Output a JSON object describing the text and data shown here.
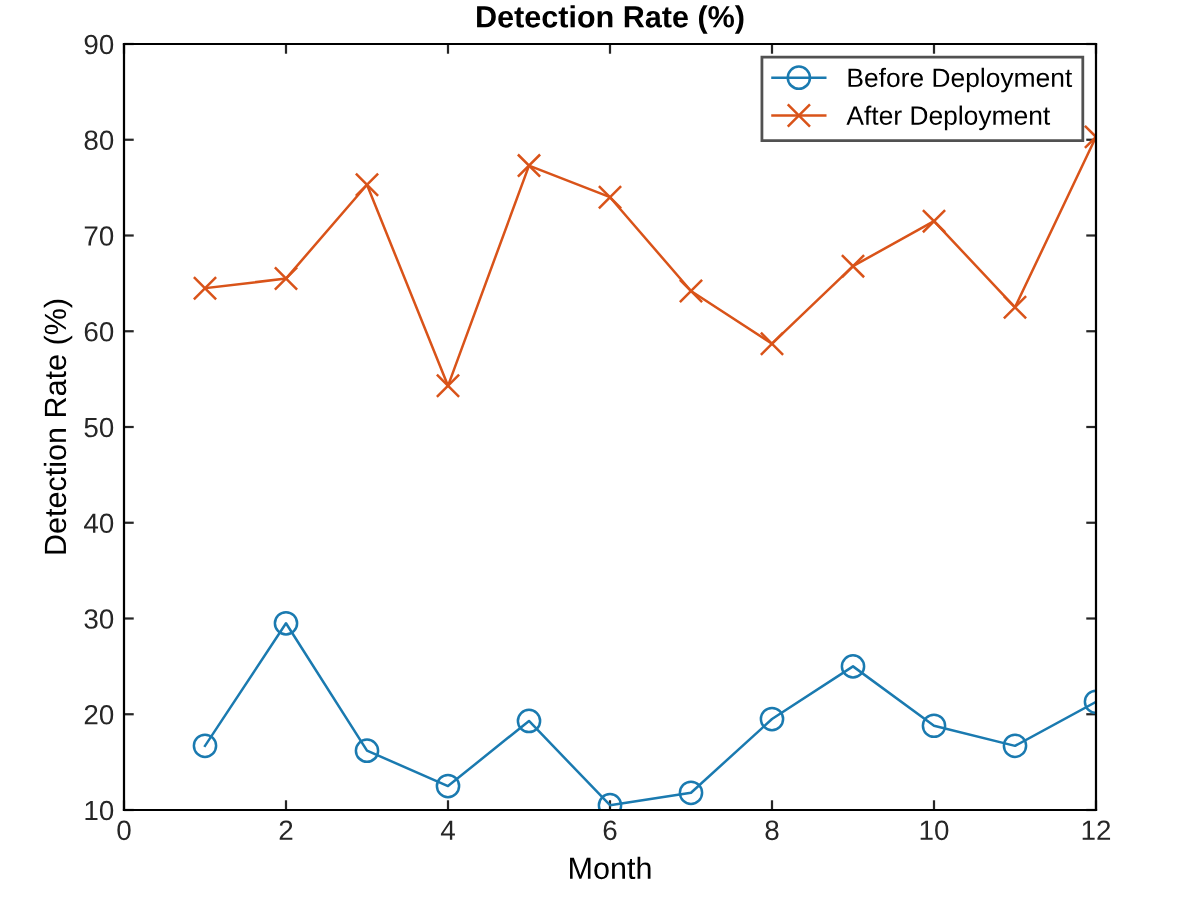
{
  "chart_data": {
    "type": "line",
    "title": "Detection Rate (%)",
    "xlabel": "Month",
    "ylabel": "Detection Rate (%)",
    "x": [
      1,
      2,
      3,
      4,
      5,
      6,
      7,
      8,
      9,
      10,
      11,
      12
    ],
    "series": [
      {
        "name": "Before Deployment",
        "color": "#1a7ab0",
        "marker": "circle",
        "values": [
          16.7,
          29.5,
          16.2,
          12.5,
          19.3,
          10.5,
          11.8,
          19.5,
          25.0,
          18.8,
          16.7,
          21.3
        ]
      },
      {
        "name": "After Deployment",
        "color": "#d95319",
        "marker": "cross",
        "values": [
          64.5,
          65.5,
          75.3,
          54.3,
          77.3,
          74.0,
          64.2,
          58.7,
          66.8,
          71.5,
          62.5,
          80.3
        ]
      }
    ],
    "xlim": [
      0,
      12
    ],
    "ylim": [
      10,
      90
    ],
    "xticks": [
      0,
      2,
      4,
      6,
      8,
      10,
      12
    ],
    "yticks": [
      10,
      20,
      30,
      40,
      50,
      60,
      70,
      80,
      90
    ],
    "grid": false,
    "legend": "top right",
    "line_style": "solid"
  }
}
